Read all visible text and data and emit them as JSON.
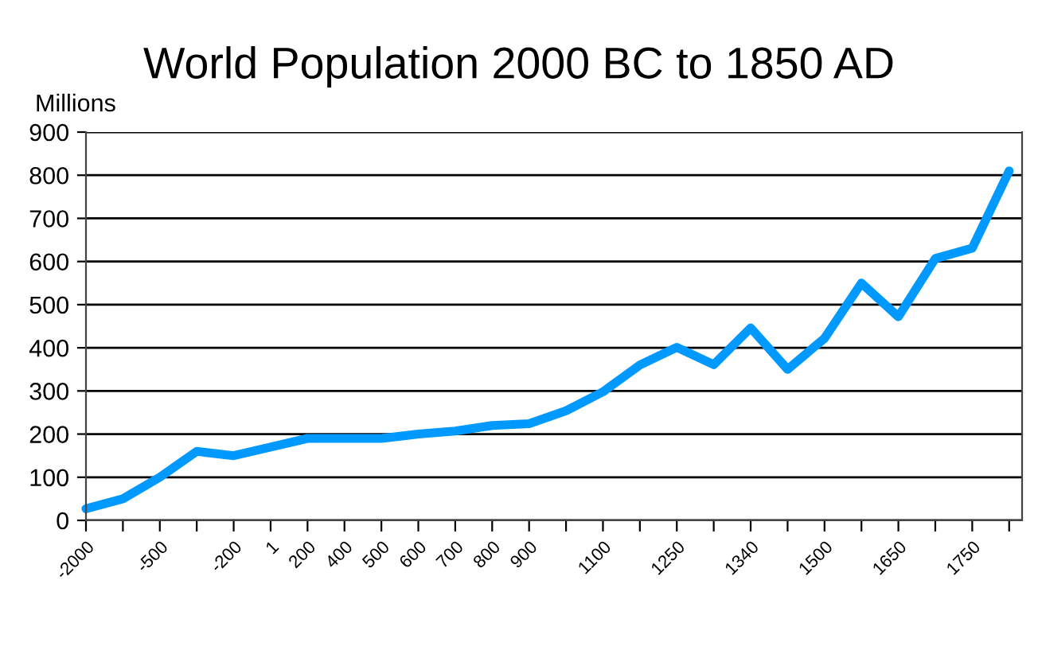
{
  "chart_data": {
    "type": "line",
    "title": "World Population 2000 BC to 1850 AD",
    "ylabel": "Millions",
    "categories": [
      "-2000",
      null,
      "-500",
      null,
      "-200",
      "1",
      "200",
      "400",
      "500",
      "600",
      "700",
      "800",
      "900",
      null,
      "1100",
      null,
      "1250",
      null,
      "1340",
      null,
      "1500",
      null,
      "1650",
      null,
      "1750",
      null
    ],
    "series": [
      {
        "color": "#0099ff",
        "values": [
          27,
          50,
          100,
          160,
          150,
          170,
          190,
          190,
          190,
          200,
          207,
          220,
          224,
          254,
          298,
          360,
          401,
          361,
          446,
          350,
          422,
          550,
          472,
          607,
          631,
          810
        ]
      }
    ],
    "ylim": [
      0,
      900
    ],
    "yticks": [
      0,
      100,
      200,
      300,
      400,
      500,
      600,
      700,
      800,
      900
    ],
    "grid": "y",
    "legend": false,
    "marker": "none",
    "line_style": "solid"
  }
}
